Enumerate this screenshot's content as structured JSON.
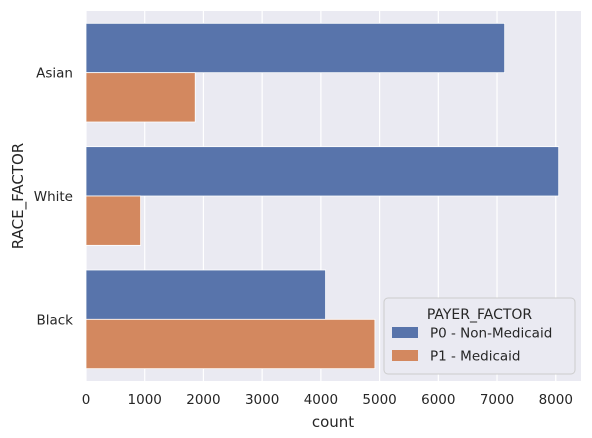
{
  "chart_data": {
    "type": "bar",
    "orientation": "horizontal",
    "categories": [
      "Asian",
      "White",
      "Black"
    ],
    "series": [
      {
        "name": "P0 - Non-Medicaid",
        "color": "#5874ab",
        "values": [
          7130,
          8050,
          4080
        ]
      },
      {
        "name": "P1 - Medicaid",
        "color": "#d3885f",
        "values": [
          1860,
          930,
          4920
        ]
      }
    ],
    "xlabel": "count",
    "ylabel": "RACE_FACTOR",
    "xlim": [
      0,
      8430
    ],
    "xticks": [
      0,
      1000,
      2000,
      3000,
      4000,
      5000,
      6000,
      7000,
      8000
    ],
    "grid": true,
    "legend": {
      "title": "PAYER_FACTOR",
      "placement": "bottom-right"
    },
    "background": "#eaeaf2"
  }
}
